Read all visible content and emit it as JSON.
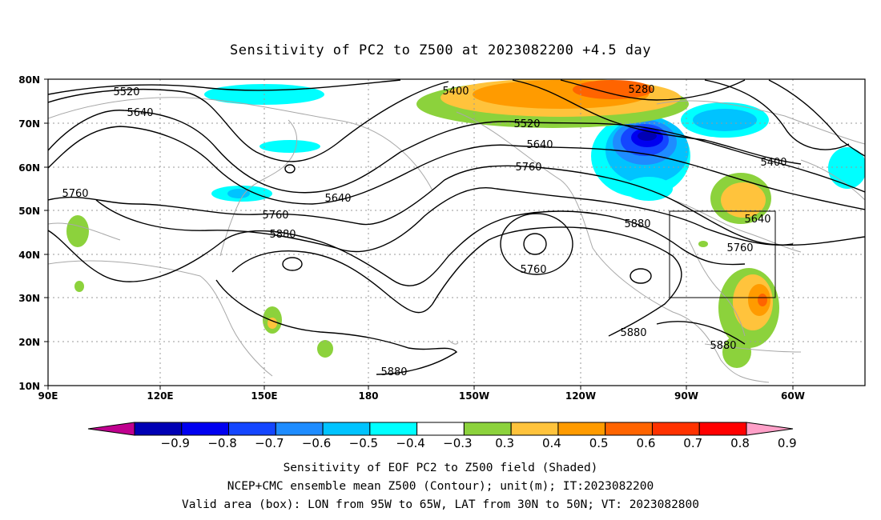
{
  "title": "Sensitivity of PC2 to Z500 at 2023082200 +4.5 day",
  "map": {
    "lat_ticks": [
      "80N",
      "70N",
      "60N",
      "50N",
      "40N",
      "30N",
      "20N",
      "10N"
    ],
    "lon_ticks": [
      "90E",
      "120E",
      "150E",
      "180",
      "150W",
      "120W",
      "90W",
      "60W"
    ],
    "grid": "dotted"
  },
  "contour_labels": [
    "5520",
    "5640",
    "5760",
    "5640",
    "5760",
    "5880",
    "5400",
    "5520",
    "5640",
    "5760",
    "5280",
    "5400",
    "5640",
    "5760",
    "5880",
    "5760",
    "5880",
    "5880",
    "5880"
  ],
  "colorbar": {
    "levels": [
      "-0.9",
      "-0.8",
      "-0.7",
      "-0.6",
      "-0.5",
      "-0.4",
      "-0.3",
      "0.3",
      "0.4",
      "0.5",
      "0.6",
      "0.7",
      "0.8",
      "0.9"
    ],
    "colors": [
      "#c0008f",
      "#0000b4",
      "#0000f0",
      "#1446ff",
      "#1e8cff",
      "#00c3ff",
      "#00ffff",
      "#ffffff",
      "#8cd23c",
      "#ffc33c",
      "#ff9b00",
      "#ff6400",
      "#ff3200",
      "#ff0000",
      "#ffa0c8"
    ]
  },
  "footer": {
    "line1": "Sensitivity of EOF PC2 to Z500 field (Shaded)",
    "line2": "NCEP+CMC ensemble mean Z500 (Contour); unit(m); IT:2023082200",
    "line3": "Valid area (box): LON from 95W to 65W, LAT from 30N to 50N; VT: 2023082800"
  }
}
